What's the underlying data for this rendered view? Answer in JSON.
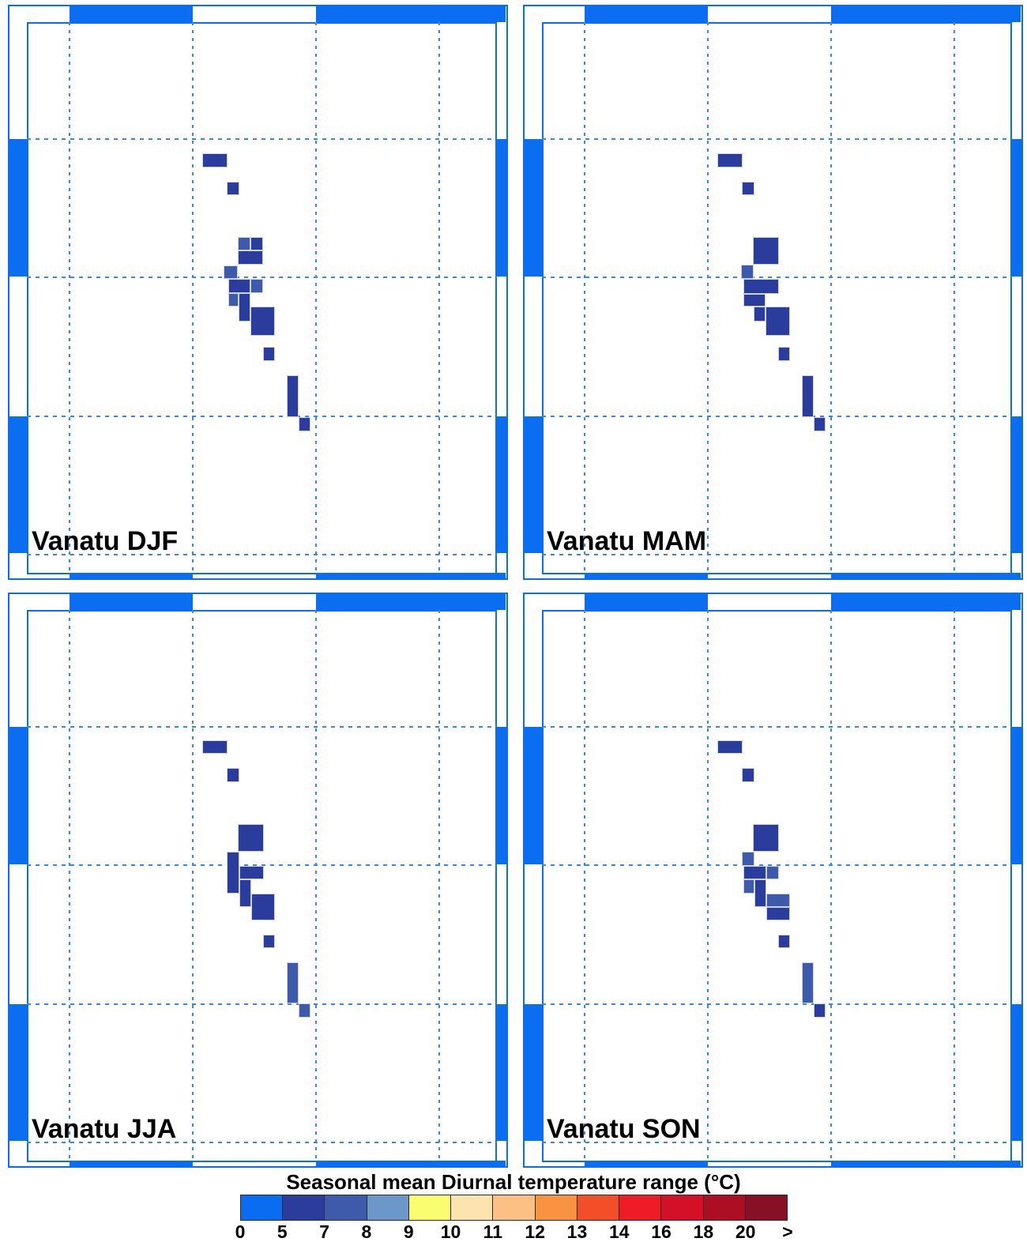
{
  "colorbar": {
    "title": "Seasonal mean Diurnal temperature range (°C)",
    "tick_labels": [
      "0",
      "5",
      "7",
      "8",
      "9",
      "10",
      "11",
      "12",
      "13",
      "14",
      "16",
      "18",
      "20",
      ">"
    ],
    "bins": [
      "0-5",
      "5-7",
      "7-8",
      "8-9",
      "9-10",
      "10-11",
      "11-12",
      "12-13",
      "13-14",
      "14-16",
      "16-18",
      "18-20",
      ">20"
    ],
    "colors": [
      "#0a6cf0",
      "#2b3d9c",
      "#3e5bab",
      "#6b97c9",
      "#fafd70",
      "#fde3ae",
      "#fcc084",
      "#f89441",
      "#f24e28",
      "#ee1c24",
      "#d31026",
      "#ac0e24",
      "#871026"
    ]
  },
  "chart_data": {
    "type": "heatmap",
    "title": "Seasonal mean Diurnal temperature range (°C)",
    "units": "°C",
    "legend_position": "bottom",
    "grid": "dotted",
    "value_range_shown": "5-8",
    "panels": [
      {
        "label": "Vanatu DJF",
        "season": "DJF",
        "cells": [
          [
            256,
            194,
            32,
            18,
            "5-7"
          ],
          [
            287,
            230,
            16,
            17,
            "5-7"
          ],
          [
            301,
            300,
            16,
            17,
            "7-8"
          ],
          [
            317,
            300,
            16,
            17,
            "5-7"
          ],
          [
            301,
            317,
            32,
            18,
            "5-7"
          ],
          [
            283,
            336,
            18,
            17,
            "7-8"
          ],
          [
            289,
            353,
            28,
            18,
            "5-7"
          ],
          [
            317,
            353,
            16,
            18,
            "7-8"
          ],
          [
            289,
            371,
            13,
            17,
            "7-8"
          ],
          [
            302,
            371,
            15,
            36,
            "5-7"
          ],
          [
            317,
            388,
            31,
            37,
            "5-7"
          ],
          [
            333,
            439,
            15,
            18,
            "5-7"
          ],
          [
            363,
            475,
            15,
            53,
            "5-7"
          ],
          [
            378,
            528,
            15,
            18,
            "5-7"
          ]
        ]
      },
      {
        "label": "Vanatu MAM",
        "season": "MAM",
        "cells": [
          [
            256,
            194,
            32,
            18,
            "5-7"
          ],
          [
            287,
            230,
            16,
            17,
            "5-7"
          ],
          [
            301,
            300,
            33,
            35,
            "5-7"
          ],
          [
            286,
            335,
            16,
            18,
            "7-8"
          ],
          [
            289,
            353,
            45,
            19,
            "5-7"
          ],
          [
            289,
            372,
            28,
            16,
            "5-7"
          ],
          [
            302,
            388,
            15,
            19,
            "5-7"
          ],
          [
            317,
            388,
            31,
            37,
            "5-7"
          ],
          [
            333,
            439,
            15,
            18,
            "5-7"
          ],
          [
            363,
            475,
            15,
            53,
            "5-7"
          ],
          [
            378,
            528,
            15,
            18,
            "5-7"
          ]
        ]
      },
      {
        "label": "Vanatu JJA",
        "season": "JJA",
        "cells": [
          [
            256,
            193,
            32,
            17,
            "5-7"
          ],
          [
            287,
            228,
            16,
            18,
            "5-7"
          ],
          [
            301,
            299,
            33,
            35,
            "5-7"
          ],
          [
            287,
            334,
            16,
            53,
            "5-7"
          ],
          [
            303,
            352,
            31,
            17,
            "5-7"
          ],
          [
            303,
            369,
            15,
            35,
            "5-7"
          ],
          [
            318,
            387,
            30,
            34,
            "5-7"
          ],
          [
            333,
            439,
            15,
            17,
            "5-7"
          ],
          [
            363,
            474,
            15,
            52,
            "7-8"
          ],
          [
            378,
            526,
            15,
            18,
            "7-8"
          ]
        ]
      },
      {
        "label": "Vanatu SON",
        "season": "SON",
        "cells": [
          [
            256,
            193,
            32,
            17,
            "5-7"
          ],
          [
            287,
            228,
            16,
            18,
            "5-7"
          ],
          [
            301,
            299,
            33,
            35,
            "5-7"
          ],
          [
            287,
            334,
            16,
            18,
            "7-8"
          ],
          [
            289,
            352,
            29,
            17,
            "5-7"
          ],
          [
            318,
            352,
            16,
            17,
            "7-8"
          ],
          [
            289,
            369,
            14,
            18,
            "7-8"
          ],
          [
            303,
            369,
            15,
            35,
            "5-7"
          ],
          [
            318,
            387,
            30,
            17,
            "7-8"
          ],
          [
            318,
            404,
            30,
            17,
            "5-7"
          ],
          [
            333,
            439,
            15,
            17,
            "5-7"
          ],
          [
            363,
            474,
            15,
            52,
            "7-8"
          ],
          [
            378,
            526,
            15,
            18,
            "5-7"
          ]
        ]
      }
    ]
  }
}
